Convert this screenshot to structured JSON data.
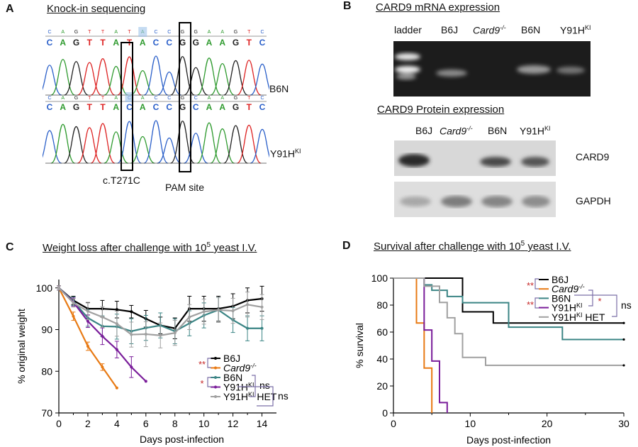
{
  "panels": {
    "a": {
      "letter": "A",
      "title": "Knock-in sequencing",
      "seq_top": [
        "C",
        "A",
        "G",
        "T",
        "T",
        "A",
        "T",
        "A",
        "C",
        "C",
        "G",
        "G",
        "A",
        "A",
        "G",
        "T",
        "C"
      ],
      "seq_bottom": [
        "C",
        "A",
        "G",
        "T",
        "T",
        "A",
        "C",
        "A",
        "C",
        "C",
        "G",
        "C",
        "A",
        "A",
        "G",
        "T",
        "C"
      ],
      "row_b6n": "B6N",
      "row_ki_base": "Y91H",
      "row_ki_sup": "KI",
      "annot_mutation": "c.T271C",
      "annot_pam": "PAM site"
    },
    "b": {
      "letter": "B",
      "mrna_title": "CARD9 mRNA expression",
      "mrna_lanes": [
        "ladder",
        "B6J",
        "Card9",
        "B6N",
        "Y91H"
      ],
      "mrna_lane_sups": [
        "",
        "",
        "-/-",
        "",
        "KI"
      ],
      "protein_title": "CARD9 Protein expression",
      "protein_lanes": [
        "B6J",
        "Card9",
        "B6N",
        "Y91H"
      ],
      "protein_lane_sups": [
        "",
        "-/-",
        "",
        "KI"
      ],
      "blot_card9": "CARD9",
      "blot_gapdh": "GAPDH"
    },
    "c": {
      "letter": "C",
      "title_pre": "Weight loss after challenge with 10",
      "title_sup": "5",
      "title_post": " yeast I.V."
    },
    "d": {
      "letter": "D",
      "title_pre": "Survival after challenge with 10",
      "title_sup": "5",
      "title_post": " yeast I.V."
    }
  },
  "chart_data": [
    {
      "type": "line",
      "title": "Weight loss after challenge with 10^5 yeast I.V.",
      "xlabel": "Days post-infection",
      "ylabel": "% original weight",
      "xlim": [
        0,
        15
      ],
      "ylim": [
        70,
        102
      ],
      "xticks": [
        0,
        2,
        4,
        6,
        8,
        10,
        12,
        14
      ],
      "yticks": [
        70,
        80,
        90,
        100
      ],
      "series": [
        {
          "name": "B6J",
          "color": "#000000",
          "x": [
            0,
            1,
            2,
            3,
            4,
            5,
            6,
            7,
            8,
            9,
            10,
            11,
            12,
            13,
            14
          ],
          "y": [
            100,
            97,
            95,
            95,
            94.8,
            94.3,
            92.6,
            91,
            90.3,
            95,
            95,
            95,
            95.6,
            97,
            97.4
          ],
          "err": [
            0.5,
            1,
            1.5,
            2,
            2,
            1.5,
            2,
            2,
            2.5,
            3,
            3,
            3,
            3,
            3,
            3
          ]
        },
        {
          "name": "Card9",
          "sup": "-/-",
          "color": "#e87a14",
          "x": [
            0,
            1,
            2,
            3,
            4
          ],
          "y": [
            100,
            93.2,
            86,
            81,
            76
          ],
          "err": [
            0.5,
            1,
            1,
            0.8,
            0
          ]
        },
        {
          "name": "B6N",
          "color": "#3b8585",
          "x": [
            0,
            1,
            2,
            3,
            4,
            5,
            6,
            7,
            8,
            9,
            10,
            11,
            12,
            13,
            14
          ],
          "y": [
            100,
            96.8,
            92.8,
            90.8,
            90.7,
            89.6,
            90.4,
            91,
            89.6,
            91.5,
            93.4,
            94.7,
            92.3,
            90.3,
            90.3
          ],
          "err": [
            0.5,
            1,
            2,
            2.5,
            3,
            3,
            3,
            3,
            3,
            3,
            3,
            3,
            3,
            3,
            3
          ]
        },
        {
          "name": "Y91H",
          "sup": "KI",
          "color": "#7a1d9a",
          "x": [
            0,
            1,
            2,
            3,
            4,
            5,
            6
          ],
          "y": [
            100,
            96.6,
            92,
            88.4,
            85.2,
            81,
            77.6
          ],
          "err": [
            0.5,
            1,
            1.5,
            2,
            2,
            2.5,
            0
          ]
        },
        {
          "name": "Y91H",
          "sup": "KI",
          "suffix": " HET",
          "color": "#a0a0a0",
          "x": [
            0,
            1,
            2,
            3,
            4,
            5,
            6,
            7,
            8,
            9,
            10,
            11,
            12,
            13,
            14
          ],
          "y": [
            100,
            96.4,
            94.4,
            93,
            91.4,
            88.8,
            88.9,
            88.6,
            89.2,
            93,
            94.3,
            94.7,
            94.5,
            96,
            95.4
          ],
          "err": [
            0.5,
            1,
            2,
            2.5,
            3,
            3,
            3,
            3,
            3,
            3,
            3,
            3,
            3,
            3,
            3
          ]
        }
      ],
      "annotations": [
        {
          "text": "**",
          "color": "#c62828",
          "between": [
            "B6J",
            "Card9-/-"
          ]
        },
        {
          "text": "*",
          "color": "#c62828",
          "between": [
            "B6N",
            "Y91HKI"
          ]
        },
        {
          "text": "ns",
          "between": [
            "B6N",
            "Y91HKI HET"
          ]
        },
        {
          "text": "ns",
          "between": [
            "Y91HKI",
            "Y91HKI HET"
          ]
        }
      ]
    },
    {
      "type": "line",
      "step": true,
      "title": "Survival after challenge with 10^5 yeast I.V.",
      "xlabel": "Days post-infection",
      "ylabel": "% survival",
      "xlim": [
        0,
        30
      ],
      "ylim": [
        0,
        100
      ],
      "xticks": [
        0,
        10,
        20,
        30
      ],
      "yticks": [
        0,
        20,
        40,
        60,
        80,
        100
      ],
      "series": [
        {
          "name": "B6J",
          "color": "#000000",
          "x": [
            0,
            9,
            9,
            10,
            10,
            13,
            13,
            30
          ],
          "y": [
            100,
            100,
            75,
            75,
            75,
            75,
            66.7,
            66.7
          ]
        },
        {
          "name": "Card9",
          "sup": "-/-",
          "color": "#e87a14",
          "x": [
            0,
            3,
            3,
            4,
            4,
            5,
            5
          ],
          "y": [
            100,
            100,
            66.7,
            66.7,
            33.3,
            33.3,
            0
          ]
        },
        {
          "name": "B6N",
          "color": "#3b8585",
          "x": [
            0,
            4,
            4,
            5,
            5,
            7,
            7,
            9,
            9,
            15,
            15,
            22,
            22,
            30
          ],
          "y": [
            100,
            100,
            95,
            95,
            91,
            91,
            86.4,
            86.4,
            81.8,
            81.8,
            63.6,
            63.6,
            54.5,
            54.5
          ]
        },
        {
          "name": "Y91H",
          "sup": "KI",
          "color": "#7a1d9a",
          "x": [
            0,
            4,
            4,
            5,
            5,
            6,
            6,
            7,
            7
          ],
          "y": [
            100,
            100,
            61.5,
            61.5,
            38.5,
            38.5,
            7.7,
            7.7,
            0
          ]
        },
        {
          "name": "Y91H",
          "sup": "KI",
          "suffix": " HET",
          "color": "#a0a0a0",
          "x": [
            0,
            4,
            4,
            6,
            6,
            7,
            7,
            8,
            8,
            9,
            9,
            12,
            12,
            30
          ],
          "y": [
            100,
            100,
            94,
            94,
            82,
            82,
            70.6,
            70.6,
            58.8,
            58.8,
            41.2,
            41.2,
            35.3,
            35.3
          ]
        }
      ],
      "annotations": [
        {
          "text": "**",
          "color": "#c62828",
          "between": [
            "B6J",
            "Card9-/-"
          ]
        },
        {
          "text": "**",
          "color": "#c62828",
          "between": [
            "B6N",
            "Y91HKI"
          ]
        },
        {
          "text": "*",
          "color": "#c62828",
          "between": [
            "B6J",
            "Y91HKI"
          ]
        },
        {
          "text": "ns",
          "between": [
            "B6N",
            "Y91HKI HET"
          ]
        }
      ]
    }
  ]
}
